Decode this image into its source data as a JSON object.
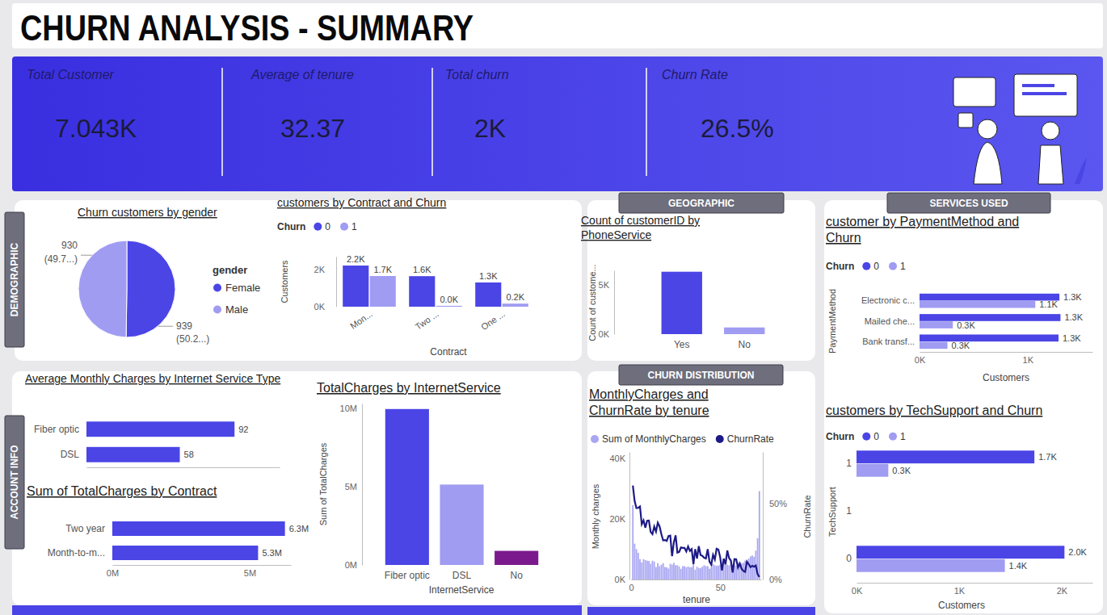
{
  "header": {
    "title": "CHURN ANALYSIS - SUMMARY"
  },
  "kpis": [
    {
      "label": "Total Customer",
      "value": 7043,
      "value_label": "7.043K"
    },
    {
      "label": "Average of tenure",
      "value": 32.37
    },
    {
      "label": "Total churn",
      "value": 1869,
      "value_label": "2K"
    },
    {
      "label": "Churn Rate",
      "value": 26.5,
      "value_label": "26.5%"
    }
  ],
  "sections": [
    "DEMOGRAPHIC",
    "GEOGRAPHIC",
    "SERVICES USED",
    "ACCOUNT INFO",
    "CHURN DISTRIBUTION"
  ],
  "chart_data": [
    {
      "type": "pie",
      "title": "Churn customers by gender",
      "categories": [
        "Female",
        "Male"
      ],
      "values": [
        939,
        930
      ],
      "share_labels": [
        "(50.2...)",
        "(49.7...)"
      ],
      "colors": [
        "#4b45e6",
        "#a09cf2"
      ],
      "legend": "right",
      "legend_title": "gender",
      "data_labels": true
    },
    {
      "type": "bar",
      "title": "customers by Contract and Churn",
      "categories": [
        "Mon...",
        "Two ...",
        "One ..."
      ],
      "series": [
        {
          "name": "0",
          "color": "#4b45e6",
          "values": [
            2220,
            1647,
            1307
          ],
          "value_labels": [
            "2.2K",
            "1.6K",
            "1.3K"
          ]
        },
        {
          "name": "1",
          "color": "#a09cf2",
          "values": [
            1655,
            48,
            166
          ],
          "value_labels": [
            "1.7K",
            "0.0K",
            "0.2K"
          ]
        }
      ],
      "x_label": "Contract",
      "y_label": "Customers",
      "ylim": [
        0,
        2700
      ],
      "yticks": [
        {
          "value": 0,
          "label": "0K"
        },
        {
          "value": 2000,
          "label": "2K"
        }
      ],
      "legend": "top-left",
      "legend_title": "Churn",
      "data_labels": true
    },
    {
      "type": "bar",
      "title": "Count of customerID by PhoneService",
      "categories": [
        "Yes",
        "No"
      ],
      "values": [
        6361,
        682
      ],
      "colors": [
        "#4b45e6",
        "#a09cf2"
      ],
      "y_label": "Count of custome...",
      "ylim": [
        0,
        6500
      ],
      "yticks": [
        {
          "value": 0,
          "label": "0K"
        },
        {
          "value": 5000,
          "label": "5K"
        }
      ]
    },
    {
      "type": "bar",
      "orientation": "horizontal",
      "title": "customer by PaymentMethod and Churn",
      "categories": [
        "Electronic c...",
        "Mailed che...",
        "Bank transf..."
      ],
      "series": [
        {
          "name": "0",
          "color": "#4b45e6",
          "values": [
            1294,
            1304,
            1286
          ],
          "value_labels": [
            "1.3K",
            "1.3K",
            "1.3K"
          ]
        },
        {
          "name": "1",
          "color": "#a09cf2",
          "values": [
            1071,
            308,
            258
          ],
          "value_labels": [
            "1.1K",
            "0.3K",
            "0.3K"
          ]
        }
      ],
      "x_label": "Customers",
      "y_label": "PaymentMethod",
      "xlim": [
        0,
        1600
      ],
      "xticks": [
        {
          "value": 0,
          "label": "0K"
        },
        {
          "value": 1000,
          "label": "1K"
        }
      ],
      "legend": "top-left",
      "legend_title": "Churn",
      "data_labels": true
    },
    {
      "type": "bar",
      "orientation": "horizontal",
      "title": "customers by TechSupport and Churn",
      "categories": [
        "1",
        "1",
        "0"
      ],
      "series": [
        {
          "name": "0",
          "color": "#4b45e6",
          "values": [
            1734,
            null,
            2027
          ],
          "value_labels": [
            "1.7K",
            null,
            "2.0K"
          ]
        },
        {
          "name": "1",
          "color": "#a09cf2",
          "values": [
            310,
            null,
            1446
          ],
          "value_labels": [
            "0.3K",
            null,
            "1.4K"
          ]
        }
      ],
      "x_label": "Customers",
      "y_label": "TechSupport",
      "xlim": [
        0,
        2300
      ],
      "xticks": [
        {
          "value": 0,
          "label": "0K"
        },
        {
          "value": 1000,
          "label": "1K"
        },
        {
          "value": 2000,
          "label": "2K"
        }
      ],
      "legend": "top-left",
      "legend_title": "Churn",
      "data_labels": true
    },
    {
      "type": "bar",
      "orientation": "horizontal",
      "title": "Average Monthly Charges by Internet Service Type",
      "categories": [
        "Fiber optic",
        "DSL"
      ],
      "values": [
        92,
        58
      ],
      "color": "#4b45e6",
      "xlim": [
        0,
        120
      ],
      "tick_labels": "y",
      "data_labels": true
    },
    {
      "type": "bar",
      "orientation": "horizontal",
      "title": "Sum of TotalCharges by Contract",
      "categories": [
        "Two year",
        "Month-to-m..."
      ],
      "values": [
        6283253,
        5305861
      ],
      "value_labels": [
        "6.3M",
        "5.3M"
      ],
      "color": "#4b45e6",
      "xlim": [
        0,
        6500000
      ],
      "xticks": [
        {
          "value": 0,
          "label": "0M"
        },
        {
          "value": 5000000,
          "label": "5M"
        }
      ],
      "data_labels": true
    },
    {
      "type": "bar",
      "title": "TotalCharges by InternetService",
      "categories": [
        "Fiber optic",
        "DSL",
        "No"
      ],
      "values": [
        9950000,
        5130000,
        900000
      ],
      "colors": [
        "#4b45e6",
        "#a09cf2",
        "#7b1a8c"
      ],
      "x_label": "InternetService",
      "y_label": "Sum of TotalCharges",
      "ylim": [
        0,
        10300000
      ],
      "yticks": [
        {
          "value": 0,
          "label": "0M"
        },
        {
          "value": 5000000,
          "label": "5M"
        },
        {
          "value": 10000000,
          "label": "10M"
        }
      ]
    },
    {
      "type": "bar",
      "title": "MonthlyCharges and ChurnRate by tenure",
      "x": [
        1,
        2,
        3,
        4,
        5,
        6,
        7,
        8,
        9,
        10,
        11,
        12,
        13,
        14,
        15,
        16,
        17,
        18,
        19,
        20,
        21,
        22,
        23,
        24,
        25,
        26,
        27,
        28,
        29,
        30,
        31,
        32,
        33,
        34,
        35,
        36,
        37,
        38,
        39,
        40,
        41,
        42,
        43,
        44,
        45,
        46,
        47,
        48,
        49,
        50,
        51,
        52,
        53,
        54,
        55,
        56,
        57,
        58,
        59,
        60,
        61,
        62,
        63,
        64,
        65,
        66,
        67,
        68,
        69,
        70,
        71,
        72
      ],
      "series": [
        {
          "name": "Sum of MonthlyCharges",
          "type": "bar",
          "color": "#a9a6f2",
          "values": [
            24500,
            11800,
            10000,
            8800,
            6700,
            5600,
            6700,
            6400,
            6200,
            6100,
            5200,
            6200,
            5900,
            4100,
            5400,
            4400,
            4900,
            5400,
            4100,
            4000,
            3600,
            5200,
            4900,
            5500,
            4700,
            4700,
            4300,
            3500,
            4400,
            4400,
            4000,
            4300,
            4000,
            4100,
            5600,
            3200,
            4200,
            3800,
            3700,
            4200,
            4700,
            4400,
            4400,
            3500,
            4100,
            5100,
            4700,
            4500,
            4600,
            4800,
            4800,
            5700,
            5000,
            4900,
            4700,
            5800,
            4800,
            5000,
            4500,
            5700,
            5700,
            5300,
            5500,
            6200,
            5900,
            6900,
            7600,
            7900,
            7500,
            9500,
            13600,
            29100
          ]
        },
        {
          "name": "ChurnRate",
          "type": "line",
          "axis": "y2",
          "color": "#1d1a86",
          "values": [
            61.9,
            51.7,
            47.0,
            47.2,
            48.1,
            36.4,
            38.9,
            34.1,
            38.7,
            38.8,
            31.3,
            29.9,
            34.9,
            31.6,
            37.4,
            35.0,
            29.9,
            25.8,
            26.0,
            25.4,
            28.6,
            28.9,
            15.3,
            24.5,
            29.1,
            17.7,
            18.1,
            21.1,
            20.8,
            20.8,
            18.5,
            21.7,
            18.8,
            20.0,
            10.2,
            20.0,
            13.8,
            22.0,
            16.1,
            15.6,
            14.3,
            13.8,
            20.0,
            11.8,
            9.8,
            16.2,
            13.2,
            20.3,
            19.7,
            14.7,
            5.9,
            13.8,
            10.0,
            19.1,
            14.1,
            12.5,
            4.6,
            13.4,
            13.3,
            7.9,
            10.5,
            7.1,
            5.6,
            5.0,
            11.8,
            10.1,
            8.2,
            9.0,
            8.4,
            9.2,
            3.5,
            1.7
          ]
        }
      ],
      "x_label": "tenure",
      "y_label": "Monthly charges",
      "y2_label": "ChurnRate",
      "xlim": [
        0,
        73
      ],
      "xticks": [
        0,
        50
      ],
      "ylim": [
        0,
        42000
      ],
      "yticks": [
        {
          "value": 0,
          "label": "0K"
        },
        {
          "value": 20000,
          "label": "20K"
        },
        {
          "value": 40000,
          "label": "40K"
        }
      ],
      "y2lim": [
        0,
        84
      ],
      "y2ticks": [
        {
          "value": 0,
          "label": "0%"
        },
        {
          "value": 50,
          "label": "50%"
        }
      ],
      "legend": "top"
    }
  ]
}
